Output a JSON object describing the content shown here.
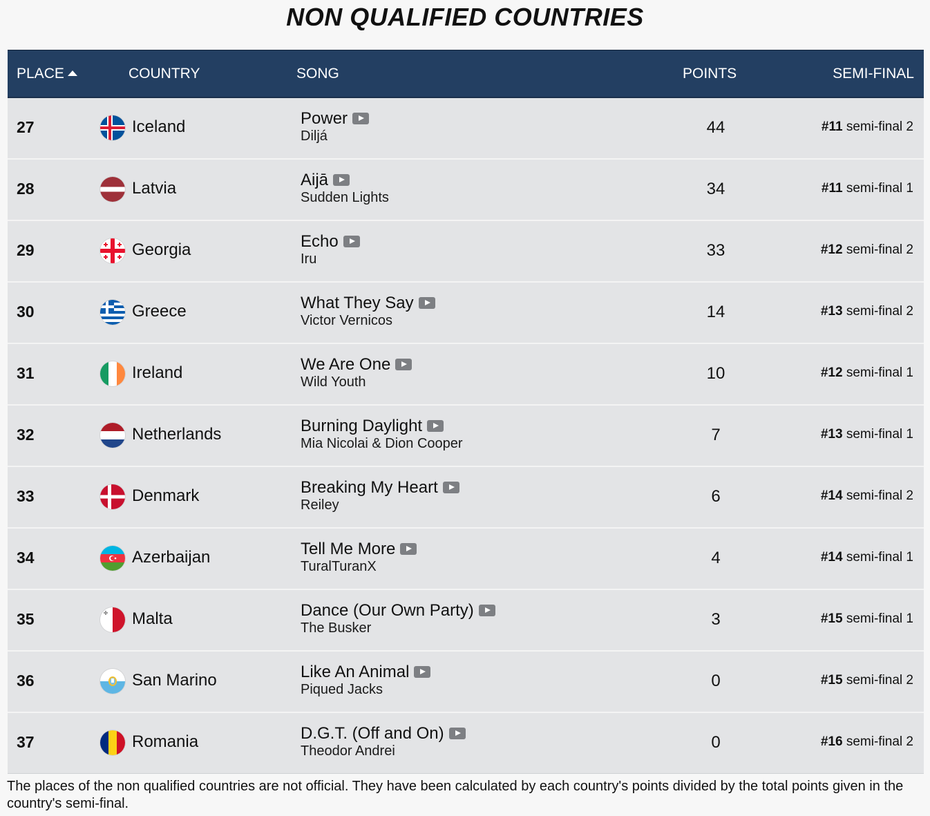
{
  "page_title": "NON QUALIFIED COUNTRIES",
  "columns": {
    "place": "PLACE",
    "country": "COUNTRY",
    "song": "SONG",
    "points": "POINTS",
    "semi_final": "SEMI-FINAL"
  },
  "rows": [
    {
      "place": "27",
      "flag": "iceland-flag",
      "country": "Iceland",
      "song": "Power",
      "artist": "Diljá",
      "points": "44",
      "semi_rank": "#11",
      "semi_name": "semi-final 2"
    },
    {
      "place": "28",
      "flag": "latvia-flag",
      "country": "Latvia",
      "song": "Aijā",
      "artist": "Sudden Lights",
      "points": "34",
      "semi_rank": "#11",
      "semi_name": "semi-final 1"
    },
    {
      "place": "29",
      "flag": "georgia-flag",
      "country": "Georgia",
      "song": "Echo",
      "artist": "Iru",
      "points": "33",
      "semi_rank": "#12",
      "semi_name": "semi-final 2"
    },
    {
      "place": "30",
      "flag": "greece-flag",
      "country": "Greece",
      "song": "What They Say",
      "artist": "Victor Vernicos",
      "points": "14",
      "semi_rank": "#13",
      "semi_name": "semi-final 2"
    },
    {
      "place": "31",
      "flag": "ireland-flag",
      "country": "Ireland",
      "song": "We Are One",
      "artist": "Wild Youth",
      "points": "10",
      "semi_rank": "#12",
      "semi_name": "semi-final 1"
    },
    {
      "place": "32",
      "flag": "netherlands-flag",
      "country": "Netherlands",
      "song": "Burning Daylight",
      "artist": "Mia Nicolai & Dion Cooper",
      "points": "7",
      "semi_rank": "#13",
      "semi_name": "semi-final 1"
    },
    {
      "place": "33",
      "flag": "denmark-flag",
      "country": "Denmark",
      "song": "Breaking My Heart",
      "artist": "Reiley",
      "points": "6",
      "semi_rank": "#14",
      "semi_name": "semi-final 2"
    },
    {
      "place": "34",
      "flag": "azerbaijan-flag",
      "country": "Azerbaijan",
      "song": "Tell Me More",
      "artist": "TuralTuranX",
      "points": "4",
      "semi_rank": "#14",
      "semi_name": "semi-final 1"
    },
    {
      "place": "35",
      "flag": "malta-flag",
      "country": "Malta",
      "song": "Dance (Our Own Party)",
      "artist": "The Busker",
      "points": "3",
      "semi_rank": "#15",
      "semi_name": "semi-final 1"
    },
    {
      "place": "36",
      "flag": "san-marino-flag",
      "country": "San Marino",
      "song": "Like An Animal",
      "artist": "Piqued Jacks",
      "points": "0",
      "semi_rank": "#15",
      "semi_name": "semi-final 2"
    },
    {
      "place": "37",
      "flag": "romania-flag",
      "country": "Romania",
      "song": "D.G.T. (Off and On)",
      "artist": "Theodor Andrei",
      "points": "0",
      "semi_rank": "#16",
      "semi_name": "semi-final 2"
    }
  ],
  "footnote": "The places of the non qualified countries are not official. They have been calculated by each country's points divided by the total points given in the country's semi-final.",
  "colors": {
    "header_bg": "#233f62",
    "row_bg": "#e3e4e6",
    "play_icon": "#7d7f83"
  }
}
